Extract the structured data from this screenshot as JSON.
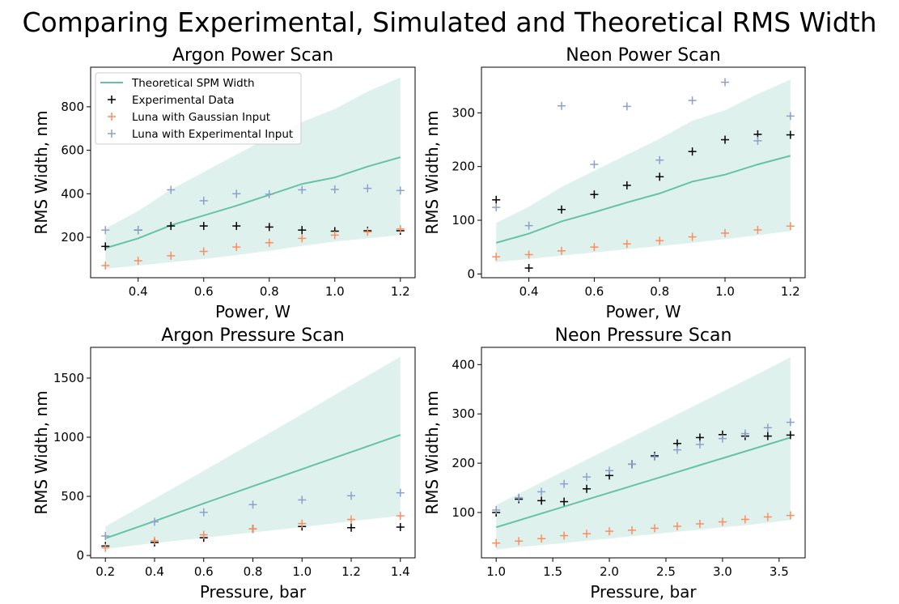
{
  "figure_title": "Comparing Experimental, Simulated and Theoretical RMS Width",
  "colors": {
    "theory_line": "#66c2a5",
    "theory_band": "#dff1ec",
    "experimental": "#000000",
    "gaussian": "#fc8d62",
    "experimental_input": "#8da0cb"
  },
  "chart_data": [
    {
      "type": "line",
      "title": "Argon Power Scan",
      "xlabel": "Power, W",
      "ylabel": "RMS Width, nm",
      "xlim": [
        0.255,
        1.245
      ],
      "ylim": [
        14,
        982
      ],
      "xticks": [
        0.4,
        0.6,
        0.8,
        1.0,
        1.2
      ],
      "xtick_labels": [
        "0.4",
        "0.6",
        "0.8",
        "1.0",
        "1.2"
      ],
      "yticks": [
        200,
        400,
        600,
        800
      ],
      "ytick_labels": [
        "200",
        "400",
        "600",
        "800"
      ],
      "legend": "top-left",
      "grid": false,
      "x": [
        0.3,
        0.4,
        0.5,
        0.6,
        0.7,
        0.8,
        0.9,
        1.0,
        1.1,
        1.2
      ],
      "band": {
        "name": "Theoretical SPM Width range",
        "lower": [
          55,
          70,
          85,
          100,
          118,
          138,
          160,
          180,
          195,
          210
        ],
        "upper": [
          240,
          320,
          420,
          500,
          580,
          660,
          730,
          790,
          870,
          935
        ]
      },
      "series": [
        {
          "name": "Theoretical SPM Width",
          "style": "line",
          "values": [
            150,
            195,
            255,
            300,
            345,
            395,
            445,
            475,
            525,
            568
          ]
        },
        {
          "name": "Experimental Data",
          "style": "marker",
          "values": [
            158,
            233,
            252,
            252,
            252,
            247,
            233,
            228,
            230,
            230
          ]
        },
        {
          "name": "Luna with Gaussian Input",
          "style": "marker",
          "values": [
            70,
            92,
            115,
            135,
            155,
            175,
            195,
            210,
            225,
            238
          ]
        },
        {
          "name": "Luna with Experimental Input",
          "style": "marker",
          "values": [
            233,
            233,
            418,
            368,
            400,
            398,
            418,
            420,
            425,
            415
          ]
        }
      ]
    },
    {
      "type": "line",
      "title": "Neon Power Scan",
      "xlabel": "Power, W",
      "ylabel": "RMS Width, nm",
      "xlim": [
        0.255,
        1.245
      ],
      "ylim": [
        -7,
        385
      ],
      "xticks": [
        0.4,
        0.6,
        0.8,
        1.0,
        1.2
      ],
      "xtick_labels": [
        "0.4",
        "0.6",
        "0.8",
        "1.0",
        "1.2"
      ],
      "yticks": [
        0,
        100,
        200,
        300
      ],
      "ytick_labels": [
        "0",
        "100",
        "200",
        "300"
      ],
      "grid": false,
      "x": [
        0.3,
        0.4,
        0.5,
        0.6,
        0.7,
        0.8,
        0.9,
        1.0,
        1.1,
        1.2
      ],
      "band": {
        "lower": [
          22,
          28,
          34,
          40,
          46,
          52,
          58,
          65,
          72,
          80
        ],
        "upper": [
          95,
          125,
          162,
          192,
          222,
          252,
          285,
          305,
          335,
          362
        ]
      },
      "series": [
        {
          "name": "Theoretical SPM Width",
          "style": "line",
          "values": [
            58,
            75,
            98,
            115,
            133,
            150,
            172,
            185,
            204,
            220
          ]
        },
        {
          "name": "Experimental Data",
          "style": "marker",
          "values": [
            138,
            11,
            120,
            148,
            165,
            181,
            228,
            250,
            260,
            259
          ]
        },
        {
          "name": "Luna with Gaussian Input",
          "style": "marker",
          "values": [
            32,
            36,
            43,
            50,
            56,
            62,
            69,
            76,
            82,
            89
          ]
        },
        {
          "name": "Luna with Experimental Input",
          "style": "marker",
          "values": [
            124,
            90,
            313,
            204,
            312,
            212,
            323,
            357,
            248,
            294
          ]
        }
      ]
    },
    {
      "type": "line",
      "title": "Argon Pressure Scan",
      "xlabel": "Pressure, bar",
      "ylabel": "RMS Width, nm",
      "xlim": [
        0.14,
        1.46
      ],
      "ylim": [
        -20,
        1760
      ],
      "xticks": [
        0.2,
        0.4,
        0.6,
        0.8,
        1.0,
        1.2,
        1.4
      ],
      "xtick_labels": [
        "0.2",
        "0.4",
        "0.6",
        "0.8",
        "1.0",
        "1.2",
        "1.4"
      ],
      "yticks": [
        0,
        500,
        1000,
        1500
      ],
      "ytick_labels": [
        "0",
        "500",
        "1000",
        "1500"
      ],
      "grid": false,
      "x": [
        0.2,
        0.4,
        0.6,
        0.8,
        1.0,
        1.2,
        1.4
      ],
      "band": {
        "lower": [
          55,
          105,
          150,
          195,
          240,
          290,
          335
        ],
        "upper": [
          245,
          480,
          715,
          955,
          1195,
          1440,
          1680
        ]
      },
      "series": [
        {
          "name": "Theoretical SPM Width",
          "style": "line",
          "values": [
            145,
            290,
            440,
            585,
            730,
            875,
            1020
          ]
        },
        {
          "name": "Experimental Data",
          "style": "marker",
          "values": [
            80,
            110,
            150,
            225,
            245,
            235,
            240
          ]
        },
        {
          "name": "Luna with Gaussian Input",
          "style": "marker",
          "values": [
            65,
            125,
            175,
            225,
            270,
            305,
            335
          ]
        },
        {
          "name": "Luna with Experimental Input",
          "style": "marker",
          "values": [
            165,
            285,
            365,
            430,
            470,
            505,
            530
          ]
        }
      ]
    },
    {
      "type": "line",
      "title": "Neon Pressure Scan",
      "xlabel": "Pressure, bar",
      "ylabel": "RMS Width, nm",
      "xlim": [
        0.87,
        3.73
      ],
      "ylim": [
        8,
        435
      ],
      "xticks": [
        1.0,
        1.5,
        2.0,
        2.5,
        3.0,
        3.5
      ],
      "xtick_labels": [
        "1.0",
        "1.5",
        "2.0",
        "2.5",
        "3.0",
        "3.5"
      ],
      "yticks": [
        100,
        200,
        300,
        400
      ],
      "ytick_labels": [
        "100",
        "200",
        "300",
        "400"
      ],
      "grid": false,
      "x": [
        1.0,
        1.2,
        1.4,
        1.6,
        1.8,
        2.0,
        2.2,
        2.4,
        2.6,
        2.8,
        3.0,
        3.2,
        3.4,
        3.6
      ],
      "band": {
        "lower": [
          25,
          30,
          34,
          38,
          43,
          47,
          52,
          56,
          61,
          65,
          70,
          74,
          79,
          85
        ],
        "upper": [
          115,
          138,
          161,
          184,
          207,
          230,
          253,
          276,
          299,
          322,
          345,
          368,
          391,
          415
        ]
      },
      "series": [
        {
          "name": "Theoretical SPM Width",
          "style": "line",
          "values": [
            70,
            84,
            98,
            112,
            126,
            140,
            154,
            168,
            182,
            196,
            210,
            224,
            238,
            252
          ]
        },
        {
          "name": "Experimental Data",
          "style": "marker",
          "values": [
            100,
            127,
            124,
            122,
            148,
            175,
            198,
            215,
            240,
            252,
            258,
            255,
            255,
            257
          ]
        },
        {
          "name": "Luna with Gaussian Input",
          "style": "marker",
          "values": [
            38,
            42,
            47,
            53,
            57,
            62,
            64,
            68,
            72,
            77,
            81,
            86,
            91,
            94
          ]
        },
        {
          "name": "Luna with Experimental Input",
          "style": "marker",
          "values": [
            105,
            130,
            142,
            158,
            172,
            185,
            198,
            213,
            227,
            238,
            250,
            260,
            272,
            283
          ]
        }
      ]
    }
  ]
}
